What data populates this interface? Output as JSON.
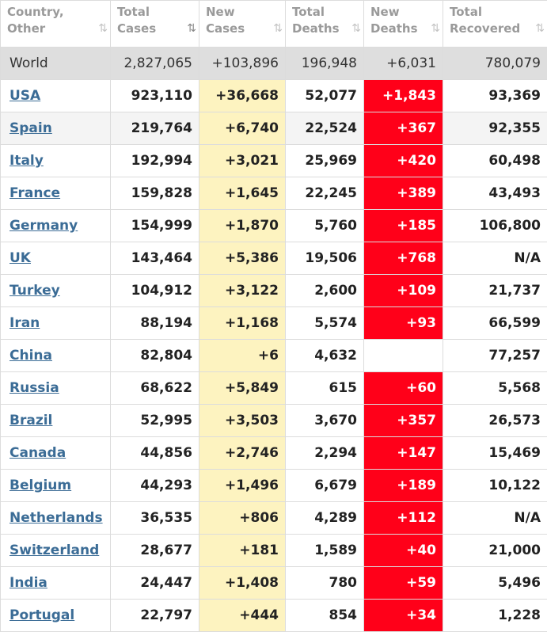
{
  "headers": [
    {
      "label": "Country,\nOther",
      "sort": "⇅"
    },
    {
      "label": "Total\nCases",
      "sort": "⇅"
    },
    {
      "label": "New\nCases",
      "sort": "⇅"
    },
    {
      "label": "Total\nDeaths",
      "sort": "⇅"
    },
    {
      "label": "New\nDeaths",
      "sort": "⇅"
    },
    {
      "label": "Total\nRecovered",
      "sort": "⇅"
    }
  ],
  "world": {
    "country": "World",
    "total_cases": "2,827,065",
    "new_cases": "+103,896",
    "total_deaths": "196,948",
    "new_deaths": "+6,031",
    "total_recovered": "780,079"
  },
  "rows": [
    {
      "country": "USA",
      "total_cases": "923,110",
      "new_cases": "+36,668",
      "total_deaths": "52,077",
      "new_deaths": "+1,843",
      "total_recovered": "93,369"
    },
    {
      "country": "Spain",
      "total_cases": "219,764",
      "new_cases": "+6,740",
      "total_deaths": "22,524",
      "new_deaths": "+367",
      "total_recovered": "92,355"
    },
    {
      "country": "Italy",
      "total_cases": "192,994",
      "new_cases": "+3,021",
      "total_deaths": "25,969",
      "new_deaths": "+420",
      "total_recovered": "60,498"
    },
    {
      "country": "France",
      "total_cases": "159,828",
      "new_cases": "+1,645",
      "total_deaths": "22,245",
      "new_deaths": "+389",
      "total_recovered": "43,493"
    },
    {
      "country": "Germany",
      "total_cases": "154,999",
      "new_cases": "+1,870",
      "total_deaths": "5,760",
      "new_deaths": "+185",
      "total_recovered": "106,800"
    },
    {
      "country": "UK",
      "total_cases": "143,464",
      "new_cases": "+5,386",
      "total_deaths": "19,506",
      "new_deaths": "+768",
      "total_recovered": "N/A"
    },
    {
      "country": "Turkey",
      "total_cases": "104,912",
      "new_cases": "+3,122",
      "total_deaths": "2,600",
      "new_deaths": "+109",
      "total_recovered": "21,737"
    },
    {
      "country": "Iran",
      "total_cases": "88,194",
      "new_cases": "+1,168",
      "total_deaths": "5,574",
      "new_deaths": "+93",
      "total_recovered": "66,599"
    },
    {
      "country": "China",
      "total_cases": "82,804",
      "new_cases": "+6",
      "total_deaths": "4,632",
      "new_deaths": "",
      "total_recovered": "77,257"
    },
    {
      "country": "Russia",
      "total_cases": "68,622",
      "new_cases": "+5,849",
      "total_deaths": "615",
      "new_deaths": "+60",
      "total_recovered": "5,568"
    },
    {
      "country": "Brazil",
      "total_cases": "52,995",
      "new_cases": "+3,503",
      "total_deaths": "3,670",
      "new_deaths": "+357",
      "total_recovered": "26,573"
    },
    {
      "country": "Canada",
      "total_cases": "44,856",
      "new_cases": "+2,746",
      "total_deaths": "2,294",
      "new_deaths": "+147",
      "total_recovered": "15,469"
    },
    {
      "country": "Belgium",
      "total_cases": "44,293",
      "new_cases": "+1,496",
      "total_deaths": "6,679",
      "new_deaths": "+189",
      "total_recovered": "10,122"
    },
    {
      "country": "Netherlands",
      "total_cases": "36,535",
      "new_cases": "+806",
      "total_deaths": "4,289",
      "new_deaths": "+112",
      "total_recovered": "N/A"
    },
    {
      "country": "Switzerland",
      "total_cases": "28,677",
      "new_cases": "+181",
      "total_deaths": "1,589",
      "new_deaths": "+40",
      "total_recovered": "21,000"
    },
    {
      "country": "India",
      "total_cases": "24,447",
      "new_cases": "+1,408",
      "total_deaths": "780",
      "new_deaths": "+59",
      "total_recovered": "5,496"
    },
    {
      "country": "Portugal",
      "total_cases": "22,797",
      "new_cases": "+444",
      "total_deaths": "854",
      "new_deaths": "+34",
      "total_recovered": "1,228"
    }
  ],
  "colors": {
    "new_cases_bg": "#fdf3c0",
    "new_deaths_bg": "#ff0019",
    "world_bg": "#dedede",
    "link": "#3b6c96"
  },
  "icons": {
    "sort": "sort-arrows-icon",
    "active_sort": "sort-descending-icon"
  }
}
